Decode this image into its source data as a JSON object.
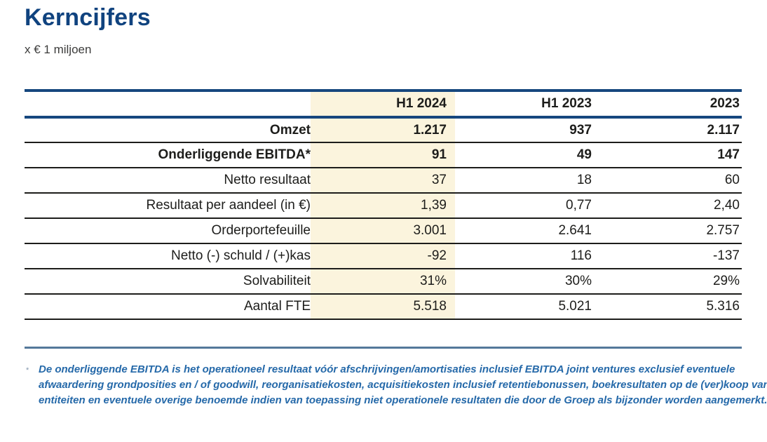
{
  "header": {
    "title": "Kerncijfers",
    "unit_note": "x € 1 miljoen"
  },
  "table": {
    "columns": [
      "",
      "H1 2024",
      "H1 2023",
      "2023"
    ],
    "highlighted_column": "H1 2024",
    "rows": [
      {
        "label": "Omzet",
        "bold": true,
        "values": [
          "1.217",
          "937",
          "2.117"
        ]
      },
      {
        "label": "Onderliggende EBITDA*",
        "bold": true,
        "values": [
          "91",
          "49",
          "147"
        ]
      },
      {
        "label": "Netto resultaat",
        "bold": false,
        "values": [
          "37",
          "18",
          "60"
        ]
      },
      {
        "label": "Resultaat per aandeel (in €)",
        "bold": false,
        "values": [
          "1,39",
          "0,77",
          "2,40"
        ]
      },
      {
        "label": "Orderportefeuille",
        "bold": false,
        "values": [
          "3.001",
          "2.641",
          "2.757"
        ]
      },
      {
        "label": "Netto (-) schuld / (+)kas",
        "bold": false,
        "values": [
          "-92",
          "116",
          "-137"
        ]
      },
      {
        "label": "Solvabiliteit",
        "bold": false,
        "values": [
          "31%",
          "30%",
          "29%"
        ]
      },
      {
        "label": "Aantal FTE",
        "bold": false,
        "values": [
          "5.518",
          "5.021",
          "5.316"
        ]
      }
    ]
  },
  "footnote": {
    "marker": "*",
    "lines": [
      "De onderliggende EBITDA is het operationeel resultaat vóór afschrijvingen/amortisaties inclusief EBITDA joint ventures exclusief eventuele",
      "afwaardering grondposities en / of goodwill, reorganisatiekosten, acquisitiekosten inclusief retentiebonussen, boekresultaten op de (ver)koop van",
      "entiteiten en eventuele overige benoemde indien van toepassing niet operationele resultaten die door de Groep als bijzonder worden aangemerkt."
    ]
  },
  "colors": {
    "title_navy": "#10437f",
    "header_rule_navy": "#16477e",
    "row_rule_dark": "#1d1d1b",
    "highlight_cream": "#fbf4dd",
    "footnote_blue": "#2569a9",
    "divider_steel_blue": "#54789a"
  }
}
